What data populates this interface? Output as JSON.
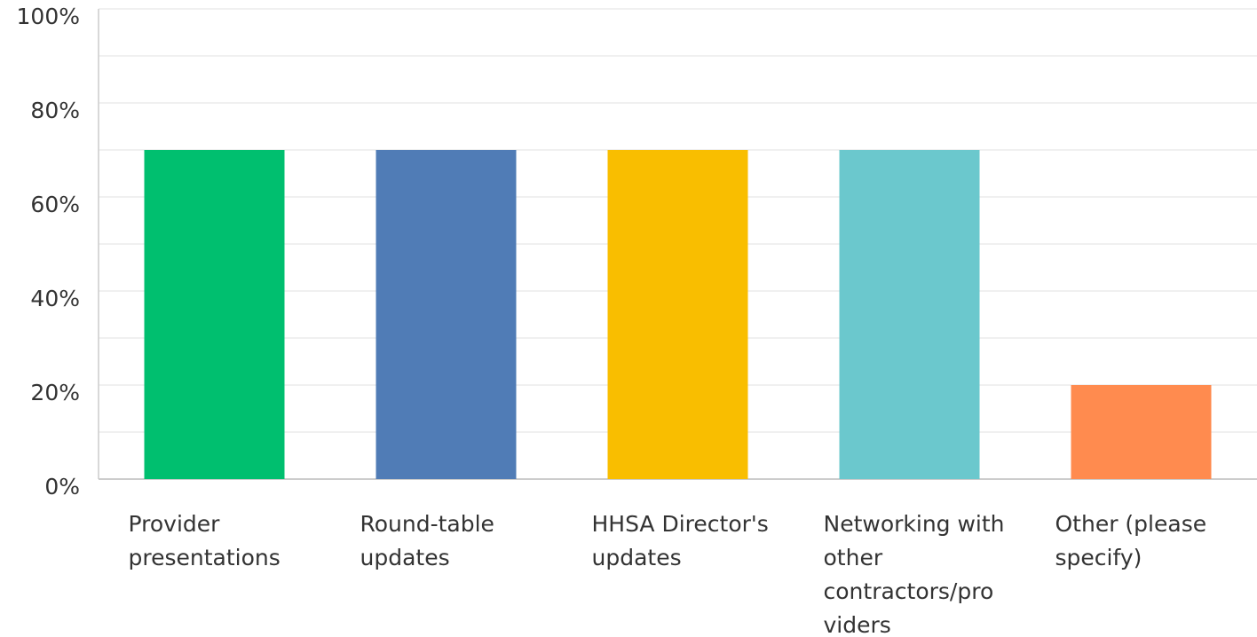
{
  "chart_data": {
    "type": "bar",
    "categories": [
      "Provider presentations",
      "Round-table updates",
      "HHSA Director's updates",
      "Networking with other contractors/providers",
      "Other (please specify)"
    ],
    "values": [
      70,
      70,
      70,
      70,
      20
    ],
    "colors": [
      "#00bf6f",
      "#507cb6",
      "#f9be00",
      "#6bc8cd",
      "#ff8b4f"
    ],
    "ylim": [
      0,
      100
    ],
    "yticks": [
      {
        "value": 0,
        "label": "0%"
      },
      {
        "value": 20,
        "label": "20%"
      },
      {
        "value": 40,
        "label": "40%"
      },
      {
        "value": 60,
        "label": "60%"
      },
      {
        "value": 80,
        "label": "80%"
      },
      {
        "value": 100,
        "label": "100%"
      }
    ],
    "y_minor_ticks": [
      10,
      30,
      50,
      70,
      90
    ],
    "grid": true
  }
}
